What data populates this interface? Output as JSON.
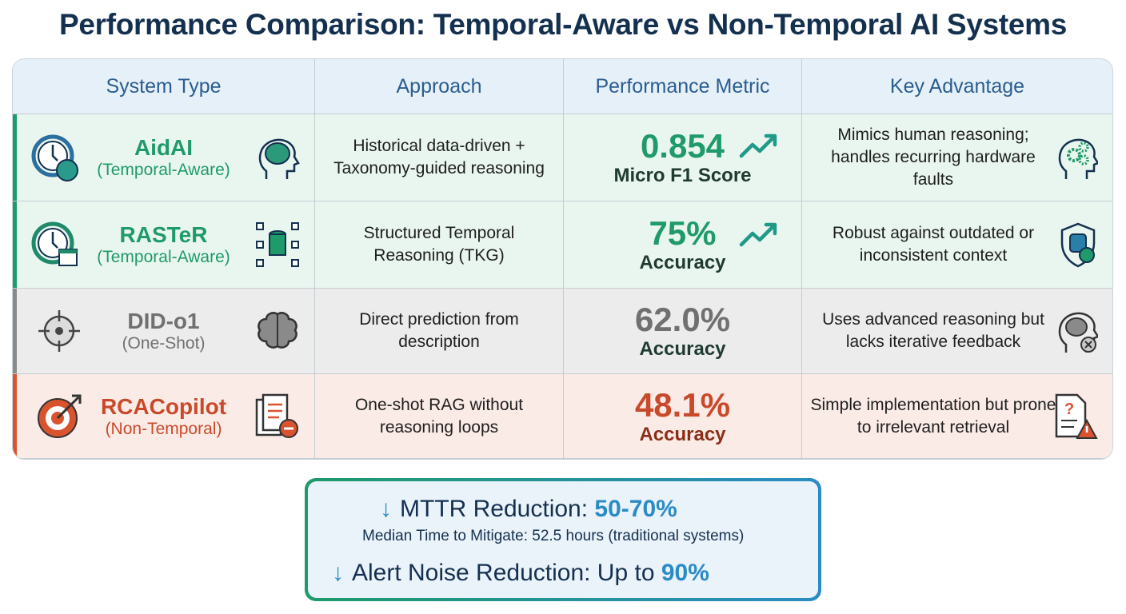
{
  "title": "Performance Comparison: Temporal-Aware vs Non-Temporal AI Systems",
  "headers": [
    "System Type",
    "Approach",
    "Performance Metric",
    "Key Advantage"
  ],
  "rows": [
    {
      "name": "AidAI",
      "category": "(Temporal-Aware)",
      "approach": "Historical data-driven + Taxonomy-guided reasoning",
      "metric_value": "0.854",
      "metric_label": "Micro F1 Score",
      "advantage": "Mimics human reasoning; handles recurring hardware faults",
      "icons": [
        "clock-brain-icon",
        "head-brain-icon",
        "trend-up-icon",
        "head-gears-icon"
      ]
    },
    {
      "name": "RASTeR",
      "category": "(Temporal-Aware)",
      "approach": "Structured Temporal Reasoning (TKG)",
      "metric_value": "75%",
      "metric_label": "Accuracy",
      "advantage": "Robust against outdated or inconsistent context",
      "icons": [
        "clock-calendar-icon",
        "database-network-icon",
        "trend-up-icon",
        "shield-database-icon"
      ]
    },
    {
      "name": "DID-o1",
      "category": "(One-Shot)",
      "approach": "Direct prediction from description",
      "metric_value": "62.0%",
      "metric_label": "Accuracy",
      "advantage": "Uses advanced reasoning but lacks iterative feedback",
      "icons": [
        "crosshair-icon",
        "brain-icon",
        "head-brain-x-icon"
      ]
    },
    {
      "name": "RCACopilot",
      "category": "(Non-Temporal)",
      "approach": "One-shot RAG without reasoning loops",
      "metric_value": "48.1%",
      "metric_label": "Accuracy",
      "advantage": "Simple implementation but prone to irrelevant retrieval",
      "icons": [
        "target-arrow-icon",
        "document-minus-icon",
        "document-warning-icon"
      ]
    }
  ],
  "summary": {
    "mttr_label": "MTTR Reduction: ",
    "mttr_value": "50-70%",
    "median_note": "Median Time to Mitigate: 52.5 hours (traditional systems)",
    "noise_label": "Alert Noise Reduction: Up to ",
    "noise_value": "90%",
    "arrow": "↓"
  },
  "colors": {
    "temporal": "#1f9a6a",
    "one_shot": "#707070",
    "non_temporal": "#c94a2a",
    "accent_blue": "#2b8cc4",
    "title": "#14304f"
  }
}
